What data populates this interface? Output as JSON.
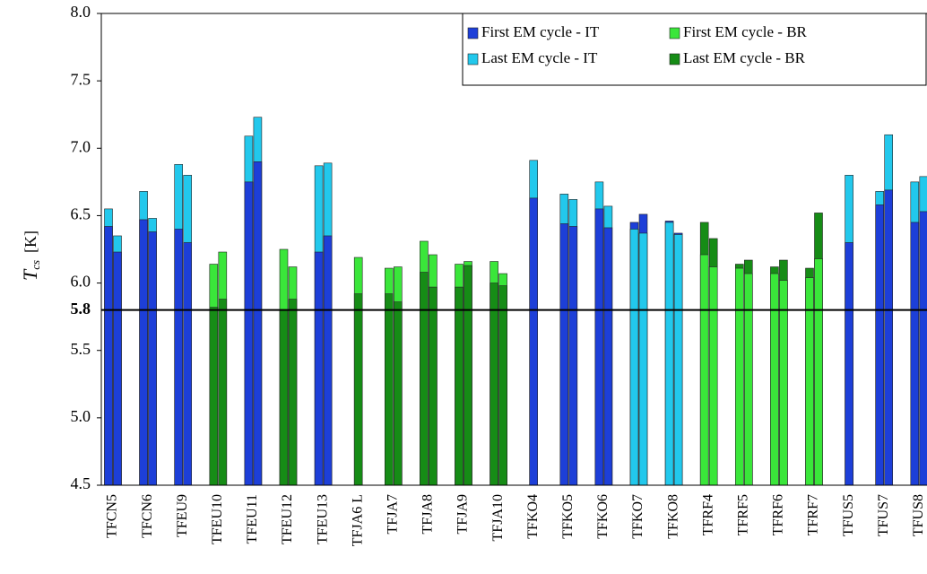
{
  "chart_data": {
    "type": "overlay-bar",
    "y_label": "T",
    "y_label_sub": "cs",
    "y_label_unit": "[K]",
    "categories": [
      "TFCN5",
      null,
      "TFCN6",
      null,
      "TFEU9",
      null,
      "TFEU10",
      null,
      "TFEU11",
      null,
      "TFEU12",
      null,
      "TFEU13",
      null,
      "TFJA6 L",
      null,
      "TFJA7",
      null,
      "TFJA8",
      null,
      "TFJA9",
      null,
      "TFJA10",
      null,
      "TFKO4",
      null,
      "TFKO5",
      null,
      "TFKO6",
      null,
      "TFKO7",
      null,
      "TFKO8",
      null,
      "TFRF4",
      null,
      "TFRF5",
      null,
      "TFRF6",
      null,
      "TFRF7",
      null,
      "TFUS5",
      null,
      "TFUS7",
      null,
      "TFUS8",
      null
    ],
    "series": [
      {
        "name": "First EM cycle - IT",
        "color": "#1d3fd8",
        "values": [
          6.42,
          6.23,
          6.47,
          6.38,
          6.4,
          6.3,
          null,
          null,
          6.75,
          6.9,
          null,
          null,
          6.23,
          6.35,
          null,
          null,
          null,
          null,
          null,
          null,
          null,
          null,
          null,
          null,
          6.63,
          null,
          6.44,
          6.42,
          6.55,
          6.41,
          6.45,
          6.51,
          6.46,
          6.37,
          null,
          null,
          null,
          null,
          null,
          null,
          null,
          null,
          6.3,
          null,
          6.58,
          6.69,
          6.45,
          6.53
        ]
      },
      {
        "name": "Last EM cycle - IT",
        "color": "#22c8ec",
        "values": [
          6.55,
          6.35,
          6.68,
          6.48,
          6.88,
          6.8,
          null,
          null,
          7.09,
          7.23,
          null,
          null,
          6.87,
          6.89,
          null,
          null,
          null,
          null,
          null,
          null,
          null,
          null,
          null,
          null,
          6.91,
          null,
          6.66,
          6.62,
          6.75,
          6.57,
          6.4,
          6.37,
          6.45,
          6.36,
          null,
          null,
          null,
          null,
          null,
          null,
          null,
          null,
          6.8,
          null,
          6.68,
          7.1,
          6.75,
          6.79
        ]
      },
      {
        "name": "First EM cycle - BR",
        "color": "#3ae63a",
        "values": [
          null,
          null,
          null,
          null,
          null,
          null,
          6.14,
          6.23,
          null,
          null,
          6.25,
          6.12,
          null,
          null,
          6.19,
          null,
          6.11,
          6.12,
          6.31,
          6.21,
          6.14,
          6.16,
          6.16,
          6.07,
          null,
          null,
          null,
          null,
          null,
          null,
          null,
          null,
          null,
          null,
          6.21,
          6.12,
          6.11,
          6.07,
          6.07,
          6.02,
          6.04,
          6.18,
          null,
          null,
          null,
          null,
          null,
          null
        ]
      },
      {
        "name": "Last EM cycle - BR",
        "color": "#168c16",
        "values": [
          null,
          null,
          null,
          null,
          null,
          null,
          5.82,
          5.88,
          null,
          null,
          5.8,
          5.88,
          null,
          null,
          5.92,
          null,
          5.92,
          5.86,
          6.08,
          5.97,
          5.97,
          6.13,
          6.0,
          5.98,
          null,
          null,
          null,
          null,
          null,
          null,
          null,
          null,
          null,
          null,
          6.45,
          6.33,
          6.14,
          6.17,
          6.12,
          6.17,
          6.11,
          6.52,
          null,
          null,
          null,
          null,
          null,
          null
        ]
      }
    ],
    "ylim": [
      4.5,
      8.0
    ],
    "yticks": [
      4.5,
      {
        "value": 5,
        "label": "5.0"
      },
      5.5,
      {
        "value": 6,
        "label": "6.0"
      },
      6.5,
      {
        "value": 7,
        "label": "7.0"
      },
      7.5,
      {
        "value": 8,
        "label": "8.0"
      }
    ],
    "reference_line": 5.8,
    "legend": "upper right"
  }
}
